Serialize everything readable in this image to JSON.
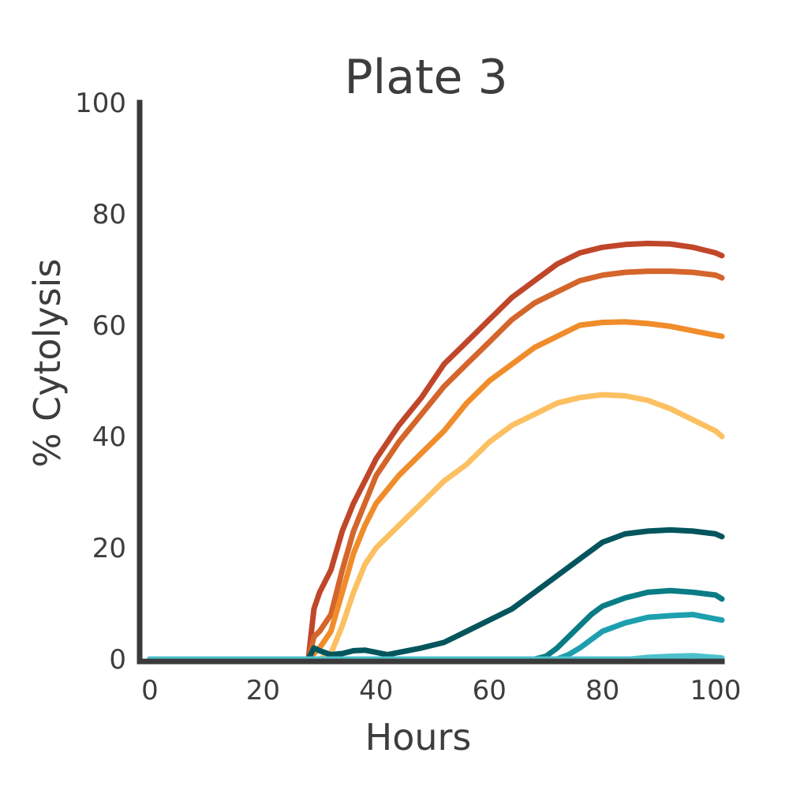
{
  "chart_data": {
    "type": "line",
    "title": "Plate 3",
    "xlabel": "Hours",
    "ylabel": "% Cytolysis",
    "xlim": [
      0,
      103
    ],
    "ylim": [
      0,
      100
    ],
    "xticks": [
      "0",
      "20",
      "40",
      "60",
      "80",
      "100"
    ],
    "yticks": [
      "0",
      "20",
      "40",
      "60",
      "80",
      "100"
    ],
    "grid": false,
    "legend": "none",
    "series": [
      {
        "color": "#c0462a",
        "points": [
          [
            0,
            0
          ],
          [
            28,
            0
          ],
          [
            29,
            9
          ],
          [
            30,
            12
          ],
          [
            32,
            16
          ],
          [
            34,
            23
          ],
          [
            36,
            28
          ],
          [
            38,
            32
          ],
          [
            40,
            36
          ],
          [
            44,
            42
          ],
          [
            48,
            47
          ],
          [
            52,
            53
          ],
          [
            56,
            57
          ],
          [
            60,
            61
          ],
          [
            64,
            65
          ],
          [
            68,
            68
          ],
          [
            72,
            71
          ],
          [
            76,
            73
          ],
          [
            80,
            74
          ],
          [
            84,
            74.5
          ],
          [
            88,
            74.7
          ],
          [
            92,
            74.6
          ],
          [
            96,
            74
          ],
          [
            100,
            73
          ],
          [
            103,
            72.5
          ]
        ]
      },
      {
        "color": "#d4652b",
        "points": [
          [
            0,
            0
          ],
          [
            28,
            0
          ],
          [
            29,
            4
          ],
          [
            30,
            5
          ],
          [
            32,
            8
          ],
          [
            34,
            16
          ],
          [
            36,
            23
          ],
          [
            38,
            28
          ],
          [
            40,
            33
          ],
          [
            44,
            39
          ],
          [
            48,
            44
          ],
          [
            52,
            49
          ],
          [
            56,
            53
          ],
          [
            60,
            57
          ],
          [
            64,
            61
          ],
          [
            68,
            64
          ],
          [
            72,
            66
          ],
          [
            76,
            68
          ],
          [
            80,
            69
          ],
          [
            84,
            69.5
          ],
          [
            88,
            69.7
          ],
          [
            92,
            69.7
          ],
          [
            96,
            69.5
          ],
          [
            100,
            69
          ],
          [
            103,
            68.5
          ]
        ]
      },
      {
        "color": "#f08c2a",
        "points": [
          [
            0,
            0
          ],
          [
            28,
            0
          ],
          [
            29,
            1
          ],
          [
            30,
            2
          ],
          [
            32,
            5
          ],
          [
            34,
            12
          ],
          [
            36,
            19
          ],
          [
            38,
            24
          ],
          [
            40,
            28
          ],
          [
            44,
            33
          ],
          [
            48,
            37
          ],
          [
            52,
            41
          ],
          [
            56,
            46
          ],
          [
            60,
            50
          ],
          [
            64,
            53
          ],
          [
            68,
            56
          ],
          [
            72,
            58
          ],
          [
            76,
            60
          ],
          [
            80,
            60.5
          ],
          [
            84,
            60.6
          ],
          [
            88,
            60.3
          ],
          [
            92,
            59.8
          ],
          [
            96,
            59
          ],
          [
            100,
            58.2
          ],
          [
            103,
            58
          ]
        ]
      },
      {
        "color": "#fcc062",
        "points": [
          [
            0,
            0
          ],
          [
            28,
            0
          ],
          [
            30,
            0
          ],
          [
            32,
            1
          ],
          [
            34,
            6
          ],
          [
            36,
            12
          ],
          [
            38,
            17
          ],
          [
            40,
            20
          ],
          [
            44,
            24
          ],
          [
            48,
            28
          ],
          [
            52,
            32
          ],
          [
            56,
            35
          ],
          [
            60,
            39
          ],
          [
            64,
            42
          ],
          [
            68,
            44
          ],
          [
            72,
            46
          ],
          [
            76,
            47
          ],
          [
            80,
            47.5
          ],
          [
            84,
            47.3
          ],
          [
            88,
            46.5
          ],
          [
            92,
            45
          ],
          [
            96,
            43
          ],
          [
            100,
            41
          ],
          [
            103,
            40
          ]
        ]
      },
      {
        "color": "#03555d",
        "points": [
          [
            0,
            0
          ],
          [
            28,
            0
          ],
          [
            29,
            2
          ],
          [
            30,
            1.5
          ],
          [
            32,
            0.8
          ],
          [
            34,
            1
          ],
          [
            36,
            1.5
          ],
          [
            38,
            1.6
          ],
          [
            40,
            1.2
          ],
          [
            42,
            0.8
          ],
          [
            44,
            1.2
          ],
          [
            48,
            2
          ],
          [
            52,
            3
          ],
          [
            56,
            5
          ],
          [
            60,
            7
          ],
          [
            64,
            9
          ],
          [
            68,
            12
          ],
          [
            72,
            15
          ],
          [
            76,
            18
          ],
          [
            80,
            21
          ],
          [
            84,
            22.5
          ],
          [
            88,
            23
          ],
          [
            92,
            23.2
          ],
          [
            96,
            23
          ],
          [
            100,
            22.5
          ],
          [
            103,
            22
          ]
        ]
      },
      {
        "color": "#0a7c85",
        "points": [
          [
            0,
            0
          ],
          [
            68,
            0
          ],
          [
            70,
            0.5
          ],
          [
            72,
            2
          ],
          [
            74,
            4
          ],
          [
            76,
            6
          ],
          [
            78,
            8
          ],
          [
            80,
            9.5
          ],
          [
            84,
            11
          ],
          [
            88,
            12
          ],
          [
            92,
            12.3
          ],
          [
            96,
            12
          ],
          [
            100,
            11.5
          ],
          [
            103,
            10.8
          ]
        ]
      },
      {
        "color": "#1d9fae",
        "points": [
          [
            0,
            0
          ],
          [
            72,
            0
          ],
          [
            74,
            0.8
          ],
          [
            76,
            2
          ],
          [
            78,
            3.5
          ],
          [
            80,
            5
          ],
          [
            84,
            6.5
          ],
          [
            88,
            7.5
          ],
          [
            92,
            7.8
          ],
          [
            96,
            8
          ],
          [
            100,
            7.2
          ],
          [
            103,
            7
          ]
        ]
      },
      {
        "color": "#4cc1cc",
        "points": [
          [
            0,
            0
          ],
          [
            85,
            0
          ],
          [
            88,
            0.3
          ],
          [
            92,
            0.5
          ],
          [
            96,
            0.6
          ],
          [
            100,
            0.3
          ],
          [
            103,
            0.2
          ]
        ]
      }
    ]
  }
}
